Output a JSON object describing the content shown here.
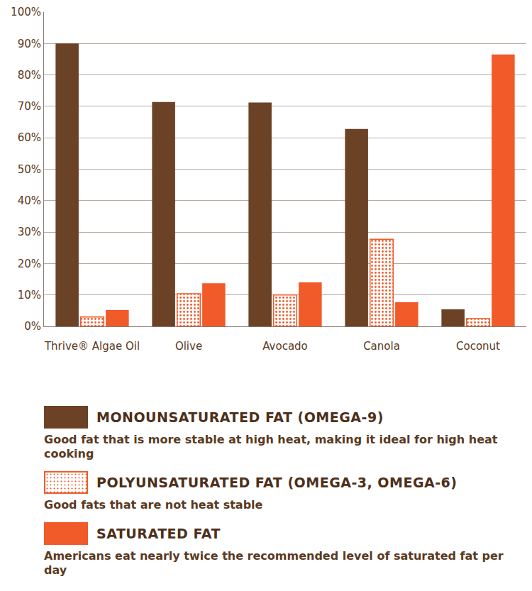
{
  "chart_data": {
    "type": "bar",
    "categories": [
      "Thrive® Algae Oil",
      "Olive",
      "Avocado",
      "Canola",
      "Coconut"
    ],
    "series": [
      {
        "name": "MONOUNSATURATED FAT (OMEGA-9)",
        "color": "#6b4226",
        "values": [
          90,
          71.4,
          71.2,
          62.8,
          5.4
        ]
      },
      {
        "name": "POLYUNSATURATED FAT (OMEGA-3, OMEGA-6)",
        "color": "#f15a29",
        "marker": "dotted",
        "values": [
          3,
          10.4,
          10,
          27.7,
          2.5
        ]
      },
      {
        "name": "SATURATED FAT",
        "color": "#f15a29",
        "values": [
          5.2,
          13.7,
          14,
          7.7,
          86.5
        ]
      }
    ],
    "annotations": [
      "Good fat that is more stable at high heat, making it ideal for high heat cooking",
      "Good fats that are not heat stable",
      "Americans eat nearly twice the recommended level of saturated fat per day"
    ],
    "ylim": [
      0,
      100
    ],
    "yticks": [
      {
        "value": 0,
        "label": "0%"
      },
      {
        "value": 10,
        "label": "10%"
      },
      {
        "value": 20,
        "label": "20%"
      },
      {
        "value": 30,
        "label": "30%"
      },
      {
        "value": 40,
        "label": "40%"
      },
      {
        "value": 50,
        "label": "50%"
      },
      {
        "value": 60,
        "label": "60%"
      },
      {
        "value": 70,
        "label": "70%"
      },
      {
        "value": 80,
        "label": "80%"
      },
      {
        "value": 90,
        "label": "90%"
      },
      {
        "value": 100,
        "label": "100%"
      }
    ],
    "grid": true
  }
}
